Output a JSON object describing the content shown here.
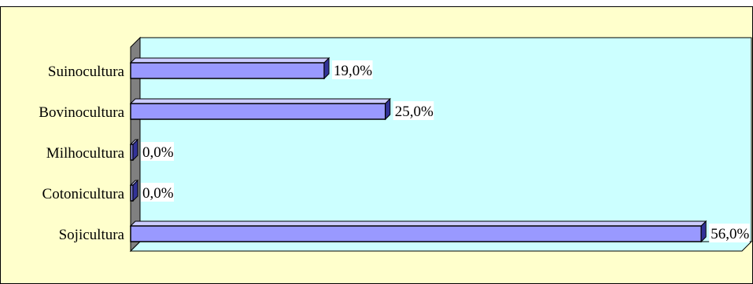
{
  "chart_data": {
    "type": "bar",
    "orientation": "horizontal",
    "categories": [
      "Suinocultura",
      "Bovinocultura",
      "Milhocultura",
      "Cotonicultura",
      "Sojicultura"
    ],
    "values": [
      19.0,
      25.0,
      0.0,
      0.0,
      56.0
    ],
    "value_labels": [
      "19,0%",
      "25,0%",
      "0,0%",
      "0,0%",
      "56,0%"
    ],
    "title": "",
    "xlabel": "",
    "ylabel": "",
    "xlim": [
      0,
      60
    ],
    "grid": false,
    "legend": "none",
    "style": "3d",
    "colors": {
      "bar_front": "#9999ff",
      "bar_top": "#ccccff",
      "bar_side": "#333399",
      "plot_back": "#ccffff",
      "plot_floor": "#ccffff",
      "plot_wall": "#808080",
      "frame_bg": "#ffffcc",
      "label_bg": "#ffffff"
    }
  }
}
